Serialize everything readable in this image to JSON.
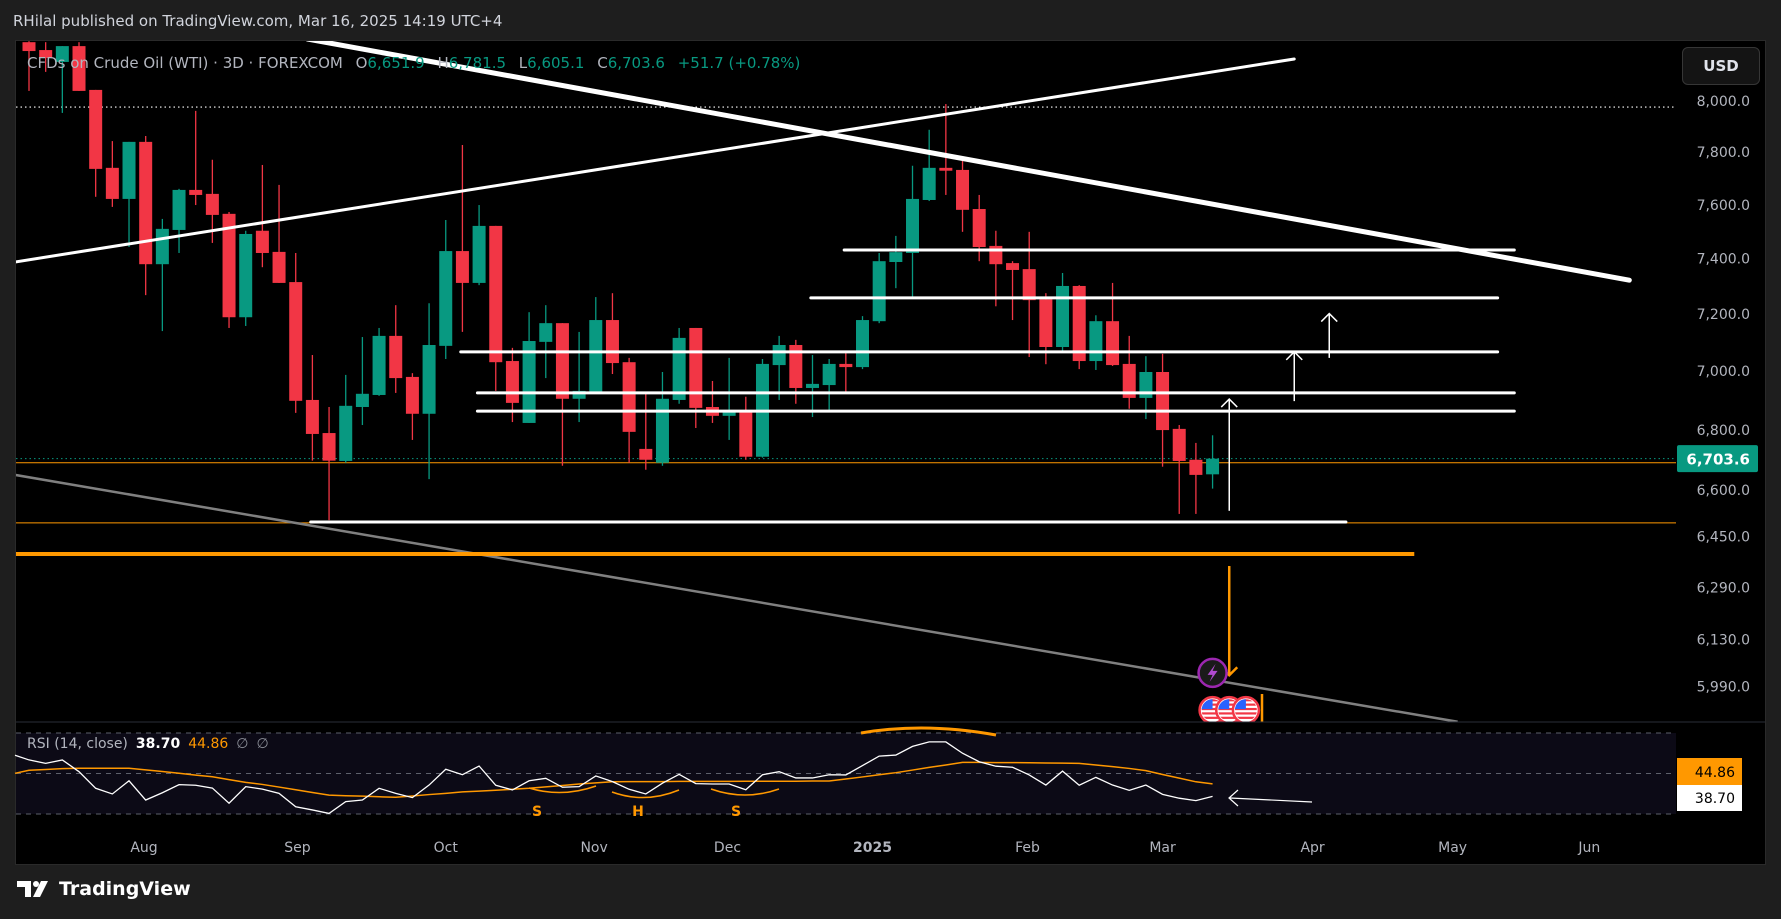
{
  "header": {
    "published": "RHilal published on TradingView.com, Mar 16, 2025 14:19 UTC+4"
  },
  "legend": {
    "symbol": "CFDs on Crude Oil (WTI) · 3D · FOREXCOM",
    "o_label": "O",
    "o": "6,651.9",
    "h_label": "H",
    "h": "6,781.5",
    "l_label": "L",
    "l": "6,605.1",
    "c_label": "C",
    "c": "6,703.6",
    "change": "+51.7 (+0.78%)"
  },
  "currency_button": "USD",
  "footer": {
    "brand": "TradingView"
  },
  "colors": {
    "up": "#089981",
    "down": "#f23645",
    "accent_orange": "#ff9800",
    "drawing_white": "#ffffff",
    "trend_gray": "#808080",
    "event_purple": "#9c27b0"
  },
  "chart_data": {
    "type": "candlestick",
    "scale": "log",
    "grid": false,
    "last_price": {
      "value": 6703.6,
      "label": "6,703.6"
    },
    "price_ticks": [
      {
        "value": 8000,
        "label": "8,000.0"
      },
      {
        "value": 7800,
        "label": "7,800.0"
      },
      {
        "value": 7600,
        "label": "7,600.0"
      },
      {
        "value": 7400,
        "label": "7,400.0"
      },
      {
        "value": 7200,
        "label": "7,200.0"
      },
      {
        "value": 7000,
        "label": "7,000.0"
      },
      {
        "value": 6800,
        "label": "6,800.0"
      },
      {
        "value": 6600,
        "label": "6,600.0"
      },
      {
        "value": 6450,
        "label": "6,450.0"
      },
      {
        "value": 6290,
        "label": "6,290.0"
      },
      {
        "value": 6130,
        "label": "6,130.0"
      },
      {
        "value": 5990,
        "label": "5,990.0"
      }
    ],
    "time_ticks": [
      {
        "label": "Aug",
        "bar": 6.9
      },
      {
        "label": "Sep",
        "bar": 16.1
      },
      {
        "label": "Oct",
        "bar": 25
      },
      {
        "label": "Nov",
        "bar": 33.9
      },
      {
        "label": "Dec",
        "bar": 41.9
      },
      {
        "label": "2025",
        "bar": 50.6
      },
      {
        "label": "Feb",
        "bar": 59.9
      },
      {
        "label": "Mar",
        "bar": 68
      },
      {
        "label": "Apr",
        "bar": 77
      },
      {
        "label": "May",
        "bar": 85.4
      },
      {
        "label": "Jun",
        "bar": 93.6
      }
    ],
    "candles_ohlc": [
      [
        8236,
        8240,
        8040,
        8200
      ],
      [
        8204,
        8236,
        8116,
        8172
      ],
      [
        8156,
        8220,
        7953,
        8220
      ],
      [
        8220,
        8236,
        8040,
        8040
      ],
      [
        8044,
        8044,
        7630,
        7736
      ],
      [
        7740,
        7843,
        7592,
        7622
      ],
      [
        7622,
        7840,
        7443,
        7840
      ],
      [
        7840,
        7863,
        7268,
        7380
      ],
      [
        7380,
        7547,
        7140,
        7510
      ],
      [
        7506,
        7660,
        7421,
        7656
      ],
      [
        7656,
        7961,
        7599,
        7637
      ],
      [
        7641,
        7771,
        7458,
        7562
      ],
      [
        7566,
        7573,
        7151,
        7189
      ],
      [
        7189,
        7503,
        7158,
        7491
      ],
      [
        7503,
        7751,
        7369,
        7421
      ],
      [
        7425,
        7675,
        7312,
        7312
      ],
      [
        7315,
        7421,
        6857,
        6898
      ],
      [
        6901,
        7056,
        6697,
        6786
      ],
      [
        6789,
        6877,
        6503,
        6697
      ],
      [
        6696,
        6987,
        6690,
        6881
      ],
      [
        6877,
        7119,
        6816,
        6922
      ],
      [
        6918,
        7151,
        6915,
        7123
      ],
      [
        7123,
        7232,
        6925,
        6976
      ],
      [
        6980,
        6993,
        6766,
        6854
      ],
      [
        6854,
        7239,
        6636,
        7091
      ],
      [
        7088,
        7543,
        7042,
        7428
      ],
      [
        7428,
        7828,
        7137,
        7312
      ],
      [
        7312,
        7599,
        7304,
        7521
      ],
      [
        7521,
        7521,
        6932,
        7031
      ],
      [
        7035,
        7081,
        6826,
        6891
      ],
      [
        6823,
        7207,
        6823,
        7105
      ],
      [
        7102,
        7232,
        6976,
        7168
      ],
      [
        7168,
        7168,
        6680,
        6905
      ],
      [
        6905,
        7137,
        6826,
        6932
      ],
      [
        6929,
        7261,
        6929,
        7179
      ],
      [
        7179,
        7275,
        6990,
        7028
      ],
      [
        7031,
        7046,
        6690,
        6793
      ],
      [
        6736,
        6929,
        6667,
        6700
      ],
      [
        6690,
        6997,
        6680,
        6905
      ],
      [
        6901,
        7151,
        6888,
        7116
      ],
      [
        7151,
        7151,
        6806,
        6874
      ],
      [
        6877,
        6966,
        6823,
        6847
      ],
      [
        6847,
        7046,
        6766,
        6867
      ],
      [
        6867,
        6912,
        6700,
        6710
      ],
      [
        6710,
        7042,
        6707,
        7025
      ],
      [
        7021,
        7123,
        6901,
        7091
      ],
      [
        7091,
        7109,
        6888,
        6942
      ],
      [
        6942,
        7056,
        6843,
        6956
      ],
      [
        6952,
        7042,
        6860,
        7025
      ],
      [
        7025,
        7070,
        6929,
        7014
      ],
      [
        7014,
        7193,
        7007,
        7179
      ],
      [
        7175,
        7421,
        7168,
        7391
      ],
      [
        7388,
        7484,
        7293,
        7424
      ],
      [
        7421,
        7748,
        7257,
        7622
      ],
      [
        7618,
        7887,
        7614,
        7740
      ],
      [
        7740,
        7988,
        7637,
        7729
      ],
      [
        7732,
        7782,
        7499,
        7581
      ],
      [
        7584,
        7637,
        7391,
        7443
      ],
      [
        7447,
        7503,
        7228,
        7380
      ],
      [
        7384,
        7391,
        7179,
        7359
      ],
      [
        7362,
        7499,
        7049,
        7250
      ],
      [
        7253,
        7275,
        7024,
        7084
      ],
      [
        7084,
        7348,
        7067,
        7301
      ],
      [
        7301,
        7304,
        7007,
        7035
      ],
      [
        7035,
        7196,
        7004,
        7175
      ],
      [
        7175,
        7312,
        7018,
        7021
      ],
      [
        7025,
        7123,
        6871,
        6908
      ],
      [
        6908,
        7052,
        6836,
        6997
      ],
      [
        6997,
        7060,
        6677,
        6799
      ],
      [
        6803,
        6816,
        6523,
        6696
      ],
      [
        6700,
        6756,
        6523,
        6650
      ],
      [
        6651.9,
        6781.5,
        6605.1,
        6703.6
      ]
    ],
    "price_lines": [
      {
        "kind": "dotted-white",
        "price": 7976
      },
      {
        "kind": "thin-orange",
        "price": 6690
      },
      {
        "kind": "thin-orange",
        "price": 6494
      }
    ],
    "drawings": [
      {
        "kind": "trend-heavy-white",
        "from": [
          16.7,
          8249
        ],
        "to": [
          96.0,
          7322
        ]
      },
      {
        "kind": "trend-white",
        "from": [
          -0.84,
          7388
        ],
        "to": [
          75.9,
          8168
        ]
      },
      {
        "kind": "trend-gray",
        "from": [
          -0.84,
          6650
        ],
        "to": [
          85.7,
          5886
        ]
      },
      {
        "kind": "level-white",
        "from": [
          48.9,
          7432
        ],
        "to": [
          89.1,
          7432
        ]
      },
      {
        "kind": "level-white",
        "from": [
          46.9,
          7258
        ],
        "to": [
          88.1,
          7258
        ]
      },
      {
        "kind": "level-white",
        "from": [
          25.9,
          7067
        ],
        "to": [
          88.1,
          7067
        ]
      },
      {
        "kind": "level-white",
        "from": [
          26.9,
          6925
        ],
        "to": [
          89.1,
          6925
        ]
      },
      {
        "kind": "level-white",
        "from": [
          26.9,
          6863
        ],
        "to": [
          89.1,
          6863
        ]
      },
      {
        "kind": "level-white",
        "from": [
          16.9,
          6497
        ],
        "to": [
          79.0,
          6497
        ]
      },
      {
        "kind": "level-heavy-orange",
        "from": [
          -0.84,
          6395
        ],
        "to": [
          83.1,
          6395
        ]
      },
      {
        "kind": "arrow-white",
        "from": [
          78,
          7046
        ],
        "to": [
          78,
          7202
        ]
      },
      {
        "kind": "arrow-white",
        "from": [
          75.9,
          6897
        ],
        "to": [
          75.9,
          7067
        ]
      },
      {
        "kind": "arrow-white",
        "from": [
          72,
          6533
        ],
        "to": [
          72,
          6904
        ]
      },
      {
        "kind": "arrow-orange",
        "from": [
          72,
          6357
        ],
        "to": [
          72,
          6023
        ]
      }
    ],
    "events": [
      {
        "icon": "lightning-icon",
        "bar": 71,
        "price": 6030
      },
      {
        "icon": "us-flag-icon",
        "bar": 71,
        "price": 5920
      },
      {
        "icon": "us-flag-icon",
        "bar": 72,
        "price": 5920
      },
      {
        "icon": "us-flag-icon",
        "bar": 73,
        "price": 5920
      }
    ],
    "rsi": {
      "title": "RSI (14, close)",
      "value_label": "38.70",
      "ma_label": "44.86",
      "na1": "∅",
      "na2": "∅",
      "levels": [
        70,
        50,
        30
      ],
      "range": [
        30,
        70
      ],
      "rsi_values": [
        56.7,
        55.0,
        56.7,
        50.9,
        42.7,
        39.9,
        46.4,
        36.9,
        40.5,
        44.5,
        44.2,
        42.8,
        35.3,
        43.5,
        42.3,
        40.2,
        33.6,
        32.0,
        30.3,
        36.1,
        36.9,
        42.7,
        40.2,
        38.1,
        44.3,
        52.1,
        49.4,
        53.7,
        44.2,
        41.9,
        46.4,
        47.6,
        43.2,
        43.5,
        48.8,
        46.0,
        42.2,
        39.9,
        45.2,
        49.6,
        45.0,
        44.8,
        44.8,
        42.0,
        49.4,
        50.9,
        47.8,
        47.8,
        49.4,
        49.3,
        53.9,
        58.6,
        59.1,
        63.4,
        65.6,
        65.6,
        60.0,
        55.8,
        53.6,
        53.1,
        49.3,
        44.3,
        51.2,
        44.2,
        48.1,
        44.3,
        41.7,
        44.3,
        39.7,
        37.8,
        36.6,
        38.7
      ],
      "ma_values": [
        51.6,
        52.0,
        52.4,
        52.6,
        52.6,
        52.6,
        52.6,
        51.8,
        51.0,
        50.1,
        49.2,
        48.4,
        47.0,
        45.6,
        44.6,
        43.3,
        42.0,
        40.6,
        39.3,
        39.0,
        38.8,
        38.5,
        38.3,
        38.9,
        39.6,
        40.2,
        40.9,
        41.3,
        41.7,
        42.2,
        42.7,
        43.4,
        44.1,
        44.8,
        45.4,
        45.9,
        46.0,
        46.0,
        46.0,
        46.1,
        46.1,
        46.1,
        46.1,
        46.2,
        46.2,
        46.2,
        46.2,
        46.3,
        46.3,
        47.3,
        48.3,
        49.4,
        50.4,
        51.7,
        53.0,
        54.2,
        55.5,
        55.5,
        55.4,
        55.4,
        55.3,
        55.2,
        55.1,
        55.0,
        54.2,
        53.4,
        52.5,
        51.4,
        49.5,
        47.7,
        45.9,
        44.86
      ],
      "annotations": [
        "S",
        "H",
        "S"
      ]
    }
  }
}
